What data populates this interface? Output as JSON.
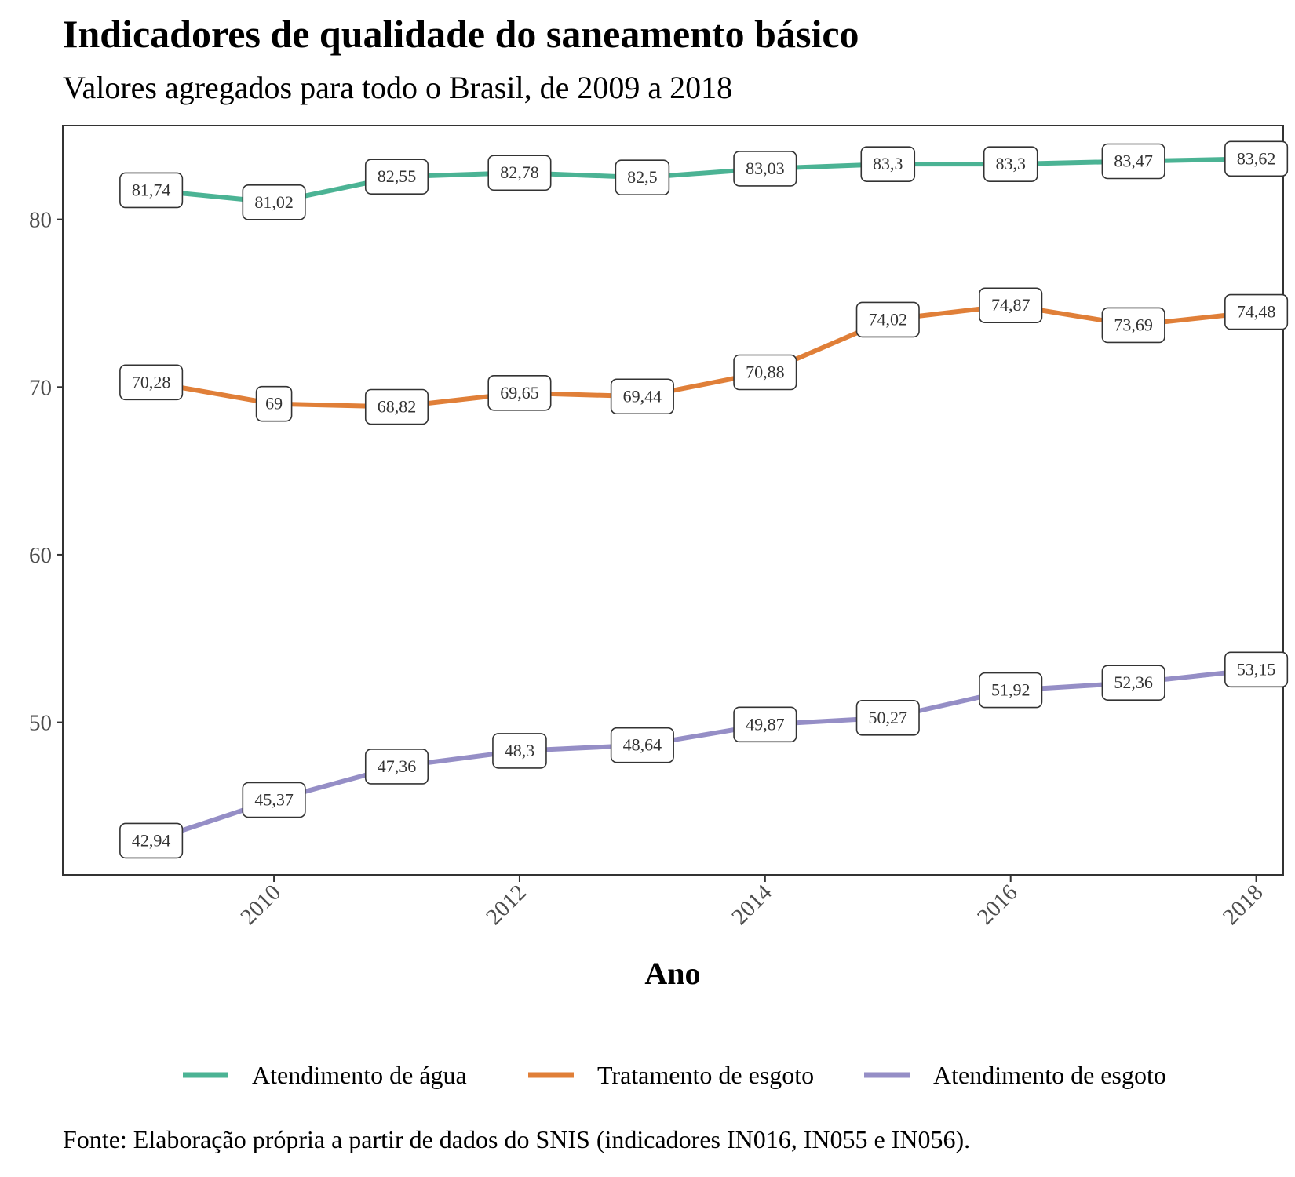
{
  "header": {
    "title": "Indicadores de qualidade do saneamento básico",
    "subtitle": "Valores agregados para todo o Brasil, de 2009 a 2018"
  },
  "footer": {
    "caption": "Fonte: Elaboração própria a partir de dados do SNIS (indicadores IN016, IN055 e IN056)."
  },
  "chart_data": {
    "type": "line",
    "title": "Indicadores de qualidade do saneamento básico",
    "subtitle": "Valores agregados para todo o Brasil, de 2009 a 2018",
    "xlabel": "Ano",
    "ylabel": "",
    "x": [
      2009,
      2010,
      2011,
      2012,
      2013,
      2014,
      2015,
      2016,
      2017,
      2018
    ],
    "xlim": [
      2008.28,
      2018.22
    ],
    "ylim": [
      40.9,
      85.6
    ],
    "xticks": [
      2010,
      2012,
      2014,
      2016,
      2018
    ],
    "yticks": [
      50,
      60,
      70,
      80
    ],
    "grid": false,
    "legend_position": "bottom",
    "series": [
      {
        "name": "Atendimento de água",
        "color": "#4bb394",
        "values": [
          81.74,
          81.02,
          82.55,
          82.78,
          82.5,
          83.03,
          83.3,
          83.3,
          83.47,
          83.62
        ],
        "labels": [
          "81,74",
          "81,02",
          "82,55",
          "82,78",
          "82,5",
          "83,03",
          "83,3",
          "83,3",
          "83,47",
          "83,62"
        ]
      },
      {
        "name": "Tratamento de esgoto",
        "color": "#e07f38",
        "values": [
          70.28,
          69,
          68.82,
          69.65,
          69.44,
          70.88,
          74.02,
          74.87,
          73.69,
          74.48
        ],
        "labels": [
          "70,28",
          "69",
          "68,82",
          "69,65",
          "69,44",
          "70,88",
          "74,02",
          "74,87",
          "73,69",
          "74,48"
        ]
      },
      {
        "name": "Atendimento de esgoto",
        "color": "#958ec6",
        "values": [
          42.94,
          45.37,
          47.36,
          48.3,
          48.64,
          49.87,
          50.27,
          51.92,
          52.36,
          53.15
        ],
        "labels": [
          "42,94",
          "45,37",
          "47,36",
          "48,3",
          "48,64",
          "49,87",
          "50,27",
          "51,92",
          "52,36",
          "53,15"
        ]
      }
    ]
  }
}
